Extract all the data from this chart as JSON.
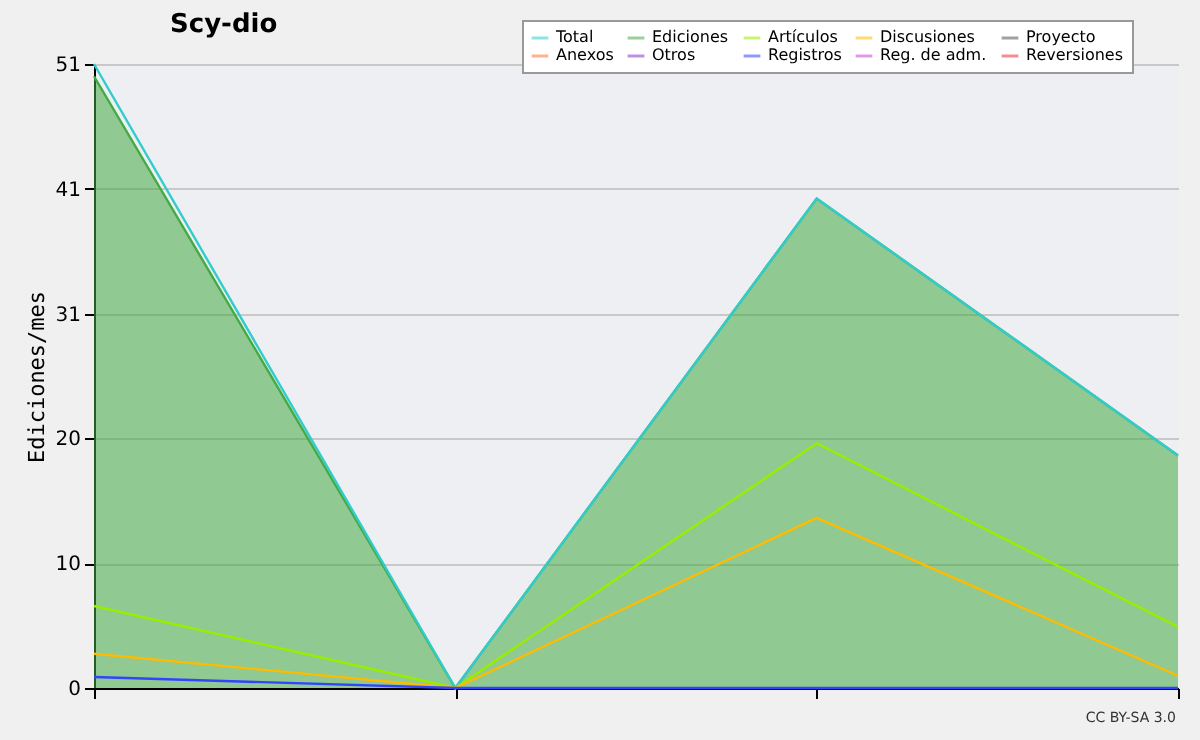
{
  "chart_data": {
    "type": "line",
    "title": "Scy-dio",
    "ylabel": "Ediciones/mes",
    "categories": [
      null,
      null,
      null,
      null
    ],
    "ylim": [
      0,
      51
    ],
    "yticks": [
      0,
      {
        "value": 10.2,
        "label": "10"
      },
      {
        "value": 20.4,
        "label": "20"
      },
      {
        "value": 30.6,
        "label": "31"
      },
      {
        "value": 40.8,
        "label": "41"
      },
      51
    ],
    "grid": "y",
    "legend": "top right",
    "annotations": [
      "CC BY-SA 3.0"
    ],
    "series": [
      {
        "name": "Total",
        "color": "#33cccc",
        "values": [
          51,
          0,
          40,
          19
        ]
      },
      {
        "name": "Ediciones",
        "type": "area",
        "color": "#44aa44",
        "values": [
          50,
          0,
          40,
          19
        ]
      },
      {
        "name": "Artículos",
        "color": "#99ee00",
        "values": [
          6.7,
          0,
          20,
          5
        ]
      },
      {
        "name": "Discusiones",
        "color": "#ffbb00",
        "values": [
          2.8,
          0,
          13.9,
          1
        ]
      },
      {
        "name": "Proyecto",
        "color": "#555555",
        "values": [
          null,
          null,
          null,
          null
        ]
      },
      {
        "name": "Anexos",
        "color": "#ff7733",
        "values": [
          null,
          null,
          null,
          null
        ]
      },
      {
        "name": "Otros",
        "color": "#8833cc",
        "values": [
          null,
          null,
          null,
          null
        ]
      },
      {
        "name": "Registros",
        "color": "#3344ff",
        "values": [
          0.9,
          0,
          0,
          0
        ]
      },
      {
        "name": "Reg. de adm.",
        "color": "#cc44dd",
        "values": [
          null,
          null,
          null,
          null
        ]
      },
      {
        "name": "Reversiones",
        "color": "#ee3333",
        "values": [
          null,
          null,
          null,
          null
        ]
      }
    ]
  }
}
